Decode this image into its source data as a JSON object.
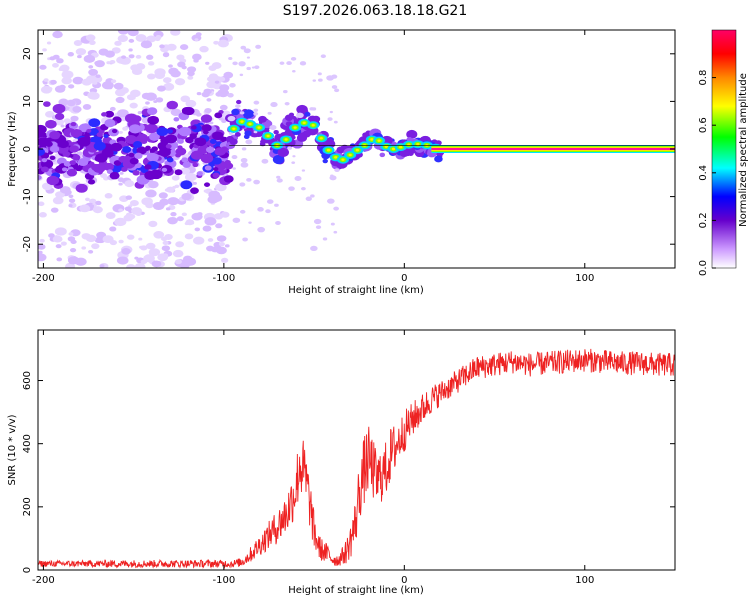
{
  "figure": {
    "title": "S197.2026.063.18.18.G21"
  },
  "chart_data": [
    {
      "type": "heatmap",
      "xlabel": "Height of straight line (km)",
      "ylabel": "Frequency (Hz)",
      "xlim": [
        -203,
        150
      ],
      "ylim": [
        -25,
        25
      ],
      "xticks": [
        -200,
        -100,
        0,
        100
      ],
      "yticks": [
        -20,
        -10,
        0,
        10,
        20
      ],
      "noise_region_km": [
        -203,
        -97
      ],
      "carrier_track": [
        {
          "x": -97,
          "y": 2.5
        },
        {
          "x": -92,
          "y": 6.0
        },
        {
          "x": -88,
          "y": 5.5
        },
        {
          "x": -83,
          "y": 5.0
        },
        {
          "x": -78,
          "y": 4.0
        },
        {
          "x": -73,
          "y": 1.5
        },
        {
          "x": -68,
          "y": 0.0
        },
        {
          "x": -63,
          "y": 4.0
        },
        {
          "x": -58,
          "y": 5.0
        },
        {
          "x": -53,
          "y": 6.0
        },
        {
          "x": -48,
          "y": 4.0
        },
        {
          "x": -44,
          "y": 0.5
        },
        {
          "x": -40,
          "y": -1.0
        },
        {
          "x": -36,
          "y": -2.5
        },
        {
          "x": -32,
          "y": -2.0
        },
        {
          "x": -28,
          "y": -0.5
        },
        {
          "x": -24,
          "y": 0.0
        },
        {
          "x": -20,
          "y": 1.5
        },
        {
          "x": -16,
          "y": 2.5
        },
        {
          "x": -12,
          "y": 1.0
        },
        {
          "x": -8,
          "y": 0.0
        },
        {
          "x": -4,
          "y": 0.0
        },
        {
          "x": 0,
          "y": 0.8
        },
        {
          "x": 5,
          "y": 1.0
        },
        {
          "x": 10,
          "y": 1.0
        },
        {
          "x": 15,
          "y": 0.5
        },
        {
          "x": 20,
          "y": 0.0
        },
        {
          "x": 150,
          "y": 0.0
        }
      ],
      "colorbar": {
        "label": "Normalized spectral amplitude",
        "range": [
          0,
          1
        ],
        "ticks": [
          "0.0",
          "0.2",
          "0.4",
          "0.6",
          "0.8"
        ],
        "stops": [
          "#ffffff",
          "#cc99ff",
          "#6600cc",
          "#0000ff",
          "#00ffff",
          "#00ff00",
          "#ffff00",
          "#ff8800",
          "#ff0000",
          "#ff0066"
        ]
      },
      "colors": {
        "track_core": "#ff1493",
        "track_edge": "#ffdd00"
      }
    },
    {
      "type": "line",
      "xlabel": "Height of straight line (km)",
      "ylabel": "SNR (10 * v/v)",
      "xlim": [
        -203,
        150
      ],
      "ylim": [
        0,
        760
      ],
      "xticks": [
        -200,
        -100,
        0,
        100
      ],
      "yticks": [
        0,
        200,
        400,
        600
      ],
      "series": [
        {
          "name": "SNR",
          "color": "#ee2222",
          "x": [
            -203,
            -180,
            -160,
            -140,
            -120,
            -100,
            -95,
            -90,
            -85,
            -80,
            -75,
            -70,
            -65,
            -60,
            -58,
            -55,
            -52,
            -50,
            -47,
            -45,
            -42,
            -40,
            -37,
            -35,
            -32,
            -30,
            -27,
            -25,
            -22,
            -20,
            -18,
            -15,
            -13,
            -10,
            -8,
            -5,
            -3,
            0,
            5,
            10,
            15,
            20,
            25,
            30,
            35,
            40,
            50,
            60,
            70,
            80,
            90,
            100,
            110,
            120,
            130,
            140,
            150
          ],
          "values": [
            20,
            20,
            20,
            20,
            20,
            20,
            20,
            25,
            50,
            80,
            110,
            140,
            180,
            260,
            340,
            300,
            200,
            120,
            70,
            60,
            50,
            35,
            30,
            40,
            60,
            90,
            150,
            250,
            320,
            350,
            330,
            280,
            300,
            320,
            360,
            390,
            410,
            440,
            480,
            510,
            540,
            560,
            580,
            600,
            620,
            640,
            650,
            660,
            650,
            655,
            660,
            665,
            660,
            655,
            655,
            650,
            650
          ]
        }
      ],
      "noise_amplitude": [
        10,
        10,
        12,
        12,
        12,
        12,
        12,
        15,
        25,
        35,
        45,
        55,
        70,
        90,
        110,
        100,
        80,
        60,
        40,
        35,
        30,
        22,
        20,
        25,
        40,
        55,
        80,
        100,
        110,
        110,
        100,
        90,
        90,
        90,
        90,
        80,
        70,
        65,
        55,
        50,
        45,
        40,
        38,
        38,
        38,
        38,
        38,
        38,
        38,
        38,
        38,
        38,
        38,
        38,
        38,
        38,
        38
      ]
    }
  ]
}
